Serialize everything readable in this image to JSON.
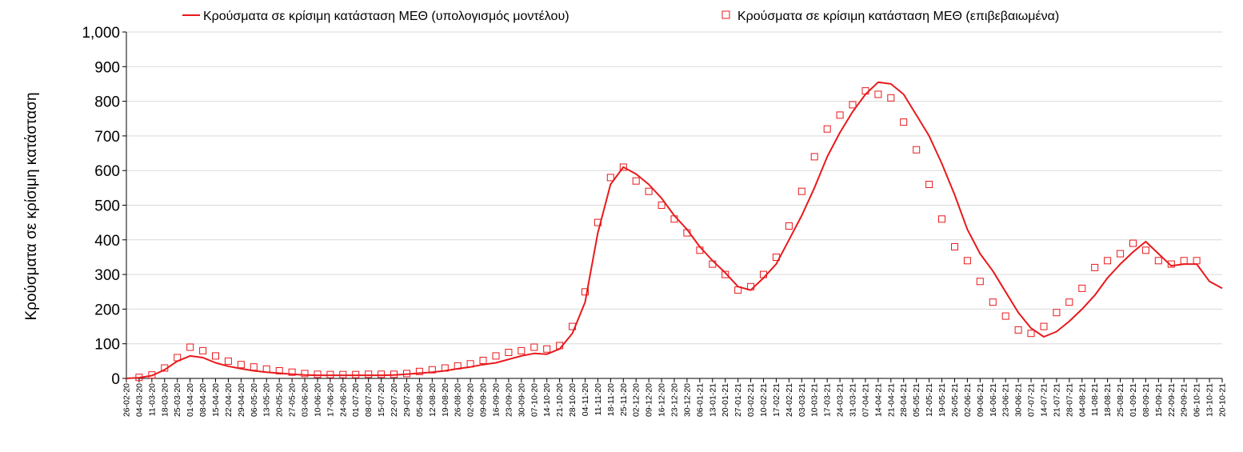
{
  "chart_data": {
    "type": "line",
    "title": "",
    "xlabel": "",
    "ylabel": "Κρούσματα σε κρίσιμη κατάσταση",
    "ylim": [
      0,
      1000
    ],
    "yticks": [
      "0",
      "100",
      "200",
      "300",
      "400",
      "500",
      "600",
      "700",
      "800",
      "900",
      "1,000"
    ],
    "grid": true,
    "legend_position": "top",
    "x_start": "26-02-20",
    "x_end": "20-10-21",
    "x_tick_labels": [
      "26-02-20",
      "04-03-20",
      "11-03-20",
      "18-03-20",
      "25-03-20",
      "01-04-20",
      "08-04-20",
      "15-04-20",
      "22-04-20",
      "29-04-20",
      "06-05-20",
      "13-05-20",
      "20-05-20",
      "27-05-20",
      "03-06-20",
      "10-06-20",
      "17-06-20",
      "24-06-20",
      "01-07-20",
      "08-07-20",
      "15-07-20",
      "22-07-20",
      "29-07-20",
      "05-08-20",
      "12-08-20",
      "19-08-20",
      "26-08-20",
      "02-09-20",
      "09-09-20",
      "16-09-20",
      "23-09-20",
      "30-09-20",
      "07-10-20",
      "14-10-20",
      "21-10-20",
      "28-10-20",
      "04-11-20",
      "11-11-20",
      "18-11-20",
      "25-11-20",
      "02-12-20",
      "09-12-20",
      "16-12-20",
      "23-12-20",
      "30-12-20",
      "06-01-21",
      "13-01-21",
      "20-01-21",
      "27-01-21",
      "03-02-21",
      "10-02-21",
      "17-02-21",
      "24-02-21",
      "03-03-21",
      "10-03-21",
      "17-03-21",
      "24-03-21",
      "31-03-21",
      "07-04-21",
      "14-04-21",
      "21-04-21",
      "28-04-21",
      "05-05-21",
      "12-05-21",
      "19-05-21",
      "26-05-21",
      "02-06-21",
      "09-06-21",
      "16-06-21",
      "23-06-21",
      "30-06-21",
      "07-07-21",
      "14-07-21",
      "21-07-21",
      "28-07-21",
      "04-08-21",
      "11-08-21",
      "18-08-21",
      "25-08-21",
      "01-09-21",
      "08-09-21",
      "15-09-21",
      "22-09-21",
      "29-09-21",
      "06-10-21",
      "13-10-21",
      "20-10-21"
    ],
    "series": [
      {
        "name": "Κρούσματα σε κρίσιμη κατάσταση ΜΕΘ (υπολογισμός μοντέλου)",
        "style": "line",
        "color": "#e8191c",
        "x": [
          "26-02-20",
          "04-03-20",
          "11-03-20",
          "18-03-20",
          "25-03-20",
          "01-04-20",
          "08-04-20",
          "15-04-20",
          "22-04-20",
          "29-04-20",
          "06-05-20",
          "13-05-20",
          "20-05-20",
          "27-05-20",
          "03-06-20",
          "10-06-20",
          "17-06-20",
          "24-06-20",
          "01-07-20",
          "08-07-20",
          "15-07-20",
          "22-07-20",
          "29-07-20",
          "05-08-20",
          "12-08-20",
          "19-08-20",
          "26-08-20",
          "02-09-20",
          "09-09-20",
          "16-09-20",
          "23-09-20",
          "30-09-20",
          "07-10-20",
          "14-10-20",
          "21-10-20",
          "28-10-20",
          "04-11-20",
          "11-11-20",
          "18-11-20",
          "25-11-20",
          "02-12-20",
          "09-12-20",
          "16-12-20",
          "23-12-20",
          "30-12-20",
          "06-01-21",
          "13-01-21",
          "20-01-21",
          "27-01-21",
          "03-02-21",
          "10-02-21",
          "17-02-21",
          "24-02-21",
          "03-03-21",
          "10-03-21",
          "17-03-21",
          "24-03-21",
          "31-03-21",
          "07-04-21",
          "14-04-21",
          "21-04-21",
          "28-04-21",
          "05-05-21",
          "12-05-21",
          "19-05-21",
          "26-05-21",
          "02-06-21",
          "09-06-21",
          "16-06-21",
          "23-06-21",
          "30-06-21",
          "07-07-21",
          "14-07-21",
          "21-07-21",
          "28-07-21",
          "04-08-21",
          "11-08-21",
          "18-08-21",
          "25-08-21",
          "01-09-21",
          "08-09-21",
          "15-09-21",
          "22-09-21",
          "29-09-21",
          "06-10-21",
          "13-10-21",
          "20-10-21"
        ],
        "values": [
          0,
          2,
          8,
          25,
          50,
          65,
          60,
          45,
          35,
          28,
          22,
          18,
          15,
          12,
          10,
          9,
          9,
          9,
          9,
          9,
          9,
          10,
          12,
          15,
          18,
          22,
          28,
          33,
          40,
          45,
          55,
          65,
          72,
          70,
          85,
          130,
          220,
          420,
          560,
          610,
          590,
          560,
          520,
          470,
          430,
          380,
          340,
          305,
          265,
          255,
          290,
          330,
          400,
          470,
          550,
          640,
          710,
          770,
          820,
          855,
          850,
          820,
          760,
          700,
          620,
          530,
          430,
          360,
          310,
          250,
          190,
          145,
          120,
          135,
          165,
          200,
          240,
          290,
          330,
          365,
          395,
          360,
          325,
          330,
          330,
          280,
          260
        ]
      },
      {
        "name": "Κρούσματα σε κρίσιμη κατάσταση ΜΕΘ (επιβεβαιωμένα)",
        "style": "markers",
        "color": "#e8191c",
        "x": [
          "04-03-20",
          "11-03-20",
          "18-03-20",
          "25-03-20",
          "01-04-20",
          "08-04-20",
          "15-04-20",
          "22-04-20",
          "29-04-20",
          "06-05-20",
          "13-05-20",
          "20-05-20",
          "27-05-20",
          "03-06-20",
          "10-06-20",
          "17-06-20",
          "24-06-20",
          "01-07-20",
          "08-07-20",
          "15-07-20",
          "22-07-20",
          "29-07-20",
          "05-08-20",
          "12-08-20",
          "19-08-20",
          "26-08-20",
          "02-09-20",
          "09-09-20",
          "16-09-20",
          "23-09-20",
          "30-09-20",
          "07-10-20",
          "14-10-20",
          "21-10-20",
          "28-10-20",
          "04-11-20",
          "11-11-20",
          "18-11-20",
          "25-11-20",
          "02-12-20",
          "09-12-20",
          "16-12-20",
          "23-12-20",
          "30-12-20",
          "06-01-21",
          "13-01-21",
          "20-01-21",
          "27-01-21",
          "03-02-21",
          "10-02-21",
          "17-02-21",
          "24-02-21",
          "03-03-21",
          "10-03-21",
          "17-03-21",
          "24-03-21",
          "31-03-21",
          "07-04-21",
          "14-04-21",
          "21-04-21",
          "28-04-21",
          "05-05-21",
          "12-05-21",
          "19-05-21",
          "26-05-21",
          "02-06-21",
          "09-06-21",
          "16-06-21",
          "23-06-21",
          "30-06-21",
          "07-07-21",
          "14-07-21",
          "21-07-21",
          "28-07-21",
          "04-08-21",
          "11-08-21",
          "18-08-21",
          "25-08-21",
          "01-09-21",
          "08-09-21",
          "15-09-21",
          "22-09-21",
          "29-09-21",
          "06-10-21"
        ],
        "values": [
          3,
          10,
          30,
          60,
          90,
          80,
          65,
          50,
          40,
          33,
          27,
          22,
          18,
          14,
          12,
          11,
          11,
          11,
          12,
          12,
          12,
          14,
          20,
          25,
          30,
          36,
          42,
          52,
          65,
          75,
          80,
          90,
          85,
          95,
          150,
          250,
          450,
          580,
          610,
          570,
          540,
          500,
          460,
          420,
          370,
          330,
          300,
          255,
          265,
          300,
          350,
          440,
          540,
          640,
          720,
          760,
          790,
          830,
          820,
          810,
          740,
          660,
          560,
          460,
          380,
          340,
          280,
          220,
          180,
          140,
          130,
          150,
          190,
          220,
          260,
          320,
          340,
          360,
          390,
          370,
          340,
          330,
          340,
          340
        ]
      }
    ]
  }
}
